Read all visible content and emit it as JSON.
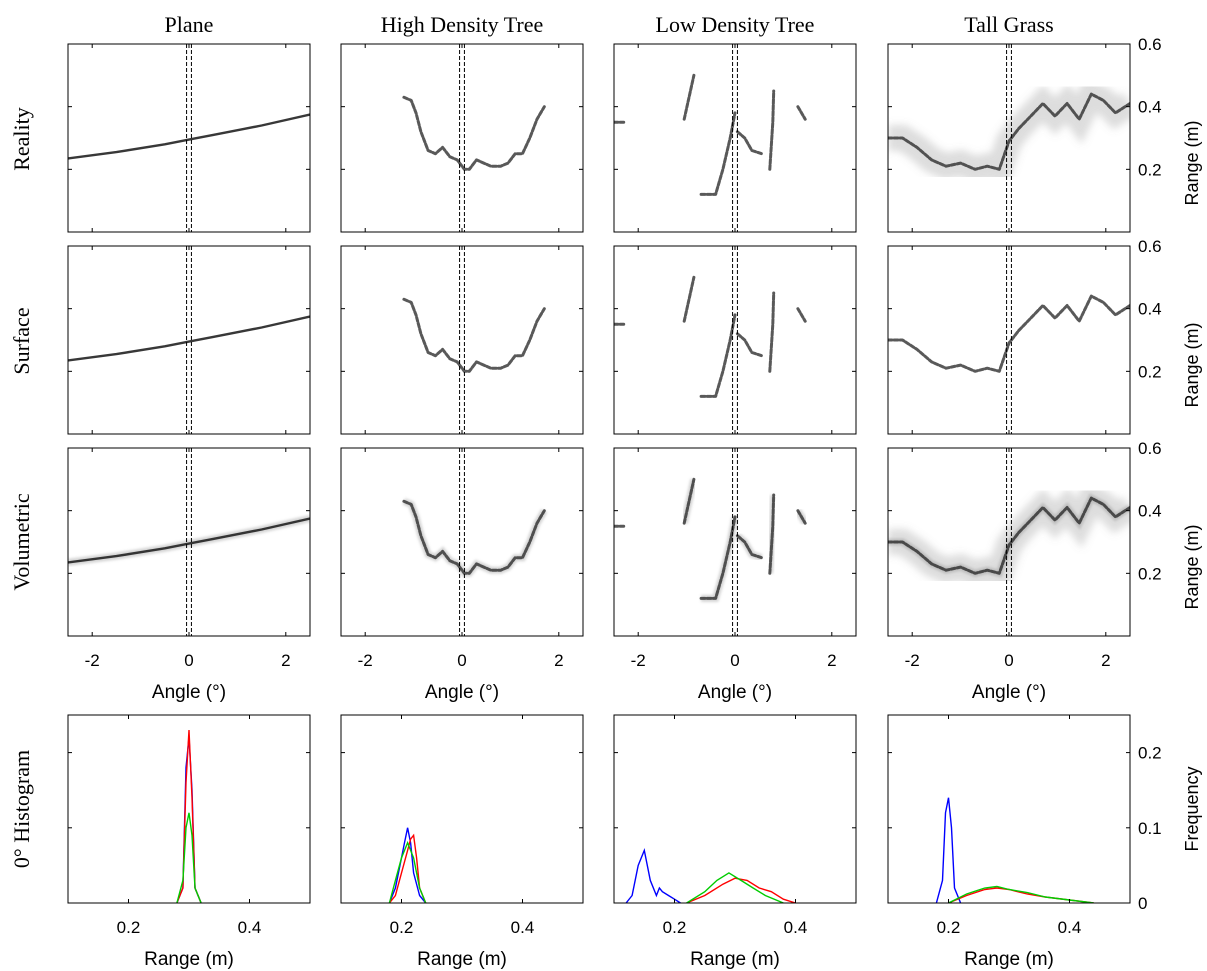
{
  "chart_data": {
    "type": "line",
    "columns": [
      "Plane",
      "High Density Tree",
      "Low Density Tree",
      "Tall Grass"
    ],
    "rows": [
      "Reality",
      "Surface",
      "Volumetric"
    ],
    "histogram_row_label": "0° Histogram",
    "scan_panels": {
      "xlabel": "Angle (°)",
      "ylabel": "Range (m)",
      "xlim": [
        -2.5,
        2.5
      ],
      "ylim": [
        0,
        0.6
      ],
      "xticks": [
        -2,
        0,
        2
      ],
      "yticks": [
        0.2,
        0.4,
        0.6
      ],
      "zero_band_deg": [
        -0.05,
        0.05
      ],
      "profiles": {
        "Plane": [
          {
            "x": [
              -2.5,
              -1.5,
              -0.5,
              0,
              0.5,
              1.5,
              2.5
            ],
            "y": [
              0.235,
              0.255,
              0.28,
              0.295,
              0.31,
              0.34,
              0.375
            ]
          }
        ],
        "High Density Tree": [
          {
            "x": [
              -1.2,
              -1.05,
              -0.95,
              -0.85,
              -0.7,
              -0.55,
              -0.4,
              -0.25,
              -0.1,
              0.05,
              0.15,
              0.3,
              0.45,
              0.6,
              0.8,
              0.95,
              1.1,
              1.25,
              1.4,
              1.55,
              1.7
            ],
            "y": [
              0.43,
              0.42,
              0.38,
              0.32,
              0.26,
              0.25,
              0.27,
              0.24,
              0.23,
              0.2,
              0.2,
              0.23,
              0.22,
              0.21,
              0.21,
              0.22,
              0.25,
              0.25,
              0.3,
              0.36,
              0.4
            ]
          }
        ],
        "Low Density Tree": [
          {
            "x": [
              -2.5,
              -2.3
            ],
            "y": [
              0.35,
              0.35
            ]
          },
          {
            "x": [
              -1.05,
              -0.85
            ],
            "y": [
              0.36,
              0.5
            ]
          },
          {
            "x": [
              -0.7,
              -0.4,
              -0.25,
              -0.1,
              0.0
            ],
            "y": [
              0.12,
              0.12,
              0.2,
              0.3,
              0.38
            ]
          },
          {
            "x": [
              0.05,
              0.2,
              0.35,
              0.55
            ],
            "y": [
              0.32,
              0.3,
              0.26,
              0.25
            ]
          },
          {
            "x": [
              0.72,
              0.78,
              0.8
            ],
            "y": [
              0.2,
              0.35,
              0.45
            ]
          },
          {
            "x": [
              1.3,
              1.45
            ],
            "y": [
              0.4,
              0.36
            ]
          }
        ],
        "Tall Grass": [
          {
            "x": [
              -2.5,
              -2.2,
              -1.9,
              -1.6,
              -1.3,
              -1.0,
              -0.7,
              -0.45,
              -0.2,
              0.0,
              0.2,
              0.45,
              0.7,
              0.95,
              1.2,
              1.45,
              1.7,
              1.95,
              2.2,
              2.5
            ],
            "y": [
              0.3,
              0.3,
              0.27,
              0.23,
              0.21,
              0.22,
              0.2,
              0.21,
              0.2,
              0.29,
              0.33,
              0.37,
              0.41,
              0.37,
              0.41,
              0.36,
              0.44,
              0.42,
              0.38,
              0.41
            ]
          }
        ]
      }
    },
    "histograms": {
      "xlabel": "Range (m)",
      "ylabel": "Frequency",
      "xlim": [
        0.1,
        0.5
      ],
      "xticks": [
        0.2,
        0.4
      ],
      "ylim": [
        0,
        0.25
      ],
      "yticks": [
        0,
        0.1,
        0.2
      ],
      "colors": [
        "#0000ff",
        "#ff0000",
        "#00cc00"
      ],
      "data": {
        "Plane": [
          {
            "color": "#0000ff",
            "x": [
              0.28,
              0.29,
              0.295,
              0.3,
              0.305,
              0.31,
              0.32
            ],
            "y": [
              0,
              0.02,
              0.18,
              0.22,
              0.15,
              0.02,
              0
            ]
          },
          {
            "color": "#ff0000",
            "x": [
              0.28,
              0.29,
              0.295,
              0.3,
              0.305,
              0.31,
              0.32
            ],
            "y": [
              0,
              0.02,
              0.16,
              0.23,
              0.14,
              0.02,
              0
            ]
          },
          {
            "color": "#00cc00",
            "x": [
              0.28,
              0.29,
              0.295,
              0.3,
              0.305,
              0.31,
              0.32
            ],
            "y": [
              0,
              0.03,
              0.1,
              0.12,
              0.09,
              0.02,
              0
            ]
          }
        ],
        "High Density Tree": [
          {
            "color": "#0000ff",
            "x": [
              0.18,
              0.19,
              0.2,
              0.205,
              0.21,
              0.215,
              0.22,
              0.23,
              0.24
            ],
            "y": [
              0,
              0.02,
              0.06,
              0.08,
              0.1,
              0.08,
              0.04,
              0.01,
              0
            ]
          },
          {
            "color": "#ff0000",
            "x": [
              0.18,
              0.19,
              0.2,
              0.21,
              0.215,
              0.22,
              0.225,
              0.23,
              0.24
            ],
            "y": [
              0,
              0.01,
              0.04,
              0.07,
              0.085,
              0.09,
              0.06,
              0.02,
              0
            ]
          },
          {
            "color": "#00cc00",
            "x": [
              0.18,
              0.19,
              0.2,
              0.21,
              0.22,
              0.23,
              0.24
            ],
            "y": [
              0,
              0.03,
              0.06,
              0.08,
              0.06,
              0.02,
              0
            ]
          }
        ],
        "Low Density Tree": [
          {
            "color": "#0000ff",
            "x": [
              0.12,
              0.13,
              0.14,
              0.15,
              0.16,
              0.17,
              0.175,
              0.18,
              0.19,
              0.2,
              0.21
            ],
            "y": [
              0,
              0.01,
              0.05,
              0.07,
              0.03,
              0.01,
              0.02,
              0.015,
              0.01,
              0.005,
              0
            ]
          },
          {
            "color": "#ff0000",
            "x": [
              0.22,
              0.25,
              0.28,
              0.3,
              0.32,
              0.34,
              0.36,
              0.38,
              0.4
            ],
            "y": [
              0,
              0.01,
              0.025,
              0.033,
              0.03,
              0.02,
              0.015,
              0.005,
              0
            ]
          },
          {
            "color": "#00cc00",
            "x": [
              0.22,
              0.25,
              0.27,
              0.29,
              0.31,
              0.33,
              0.35,
              0.38
            ],
            "y": [
              0,
              0.015,
              0.03,
              0.04,
              0.03,
              0.02,
              0.01,
              0
            ]
          }
        ],
        "Tall Grass": [
          {
            "color": "#0000ff",
            "x": [
              0.18,
              0.19,
              0.195,
              0.2,
              0.205,
              0.21,
              0.22
            ],
            "y": [
              0,
              0.03,
              0.12,
              0.14,
              0.1,
              0.02,
              0
            ]
          },
          {
            "color": "#ff0000",
            "x": [
              0.2,
              0.23,
              0.26,
              0.28,
              0.3,
              0.33,
              0.36,
              0.4,
              0.44
            ],
            "y": [
              0,
              0.01,
              0.018,
              0.02,
              0.018,
              0.012,
              0.008,
              0.004,
              0
            ]
          },
          {
            "color": "#00cc00",
            "x": [
              0.2,
              0.23,
              0.26,
              0.28,
              0.3,
              0.33,
              0.36,
              0.4,
              0.44
            ],
            "y": [
              0,
              0.012,
              0.02,
              0.022,
              0.018,
              0.014,
              0.008,
              0.004,
              0
            ]
          }
        ]
      }
    },
    "grid": false
  }
}
